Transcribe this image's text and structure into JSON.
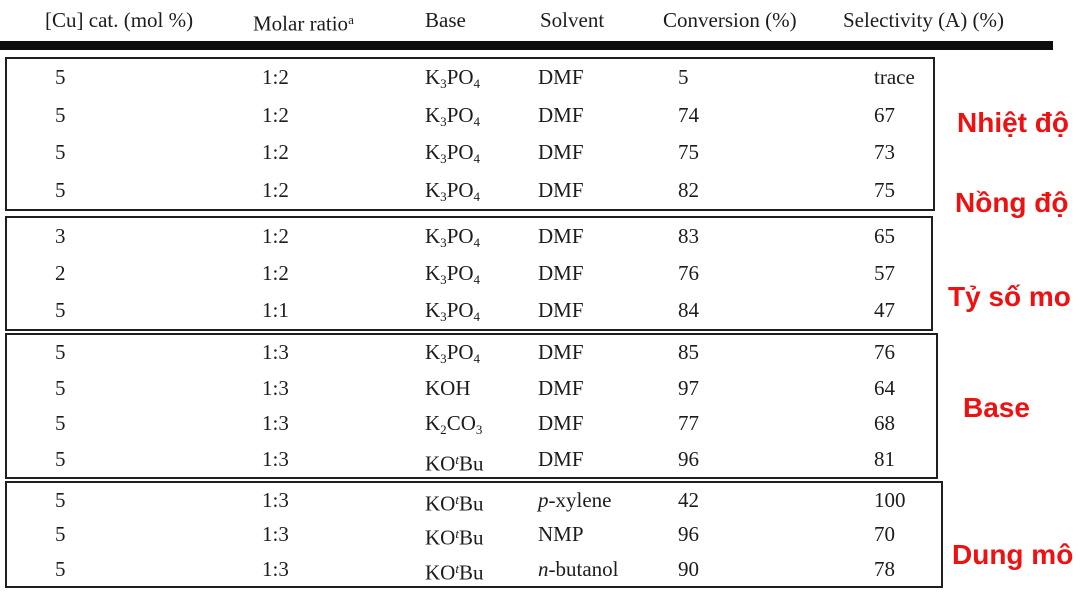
{
  "colors": {
    "annotation_red": "#ee1111",
    "table_text": "#1c1c1c",
    "border_black": "#1f1f1f",
    "background": "#ffffff"
  },
  "table": {
    "header": {
      "cu": "[Cu] cat. (mol %)",
      "molar_ratio": "Molar ratio",
      "molar_ratio_sup": "a",
      "base": "Base",
      "solvent": "Solvent",
      "conversion": "Conversion (%)",
      "selectivity": "Selectivity (A) (%)"
    },
    "groups": [
      {
        "rows": [
          {
            "cu": "5",
            "ratio": "1:2",
            "base": [
              [
                "t",
                "K"
              ],
              [
                "sub",
                "3"
              ],
              [
                "t",
                "PO"
              ],
              [
                "sub",
                "4"
              ]
            ],
            "solvent": [
              [
                "t",
                "DMF"
              ]
            ],
            "conv": "5",
            "sel": "trace"
          },
          {
            "cu": "5",
            "ratio": "1:2",
            "base": [
              [
                "t",
                "K"
              ],
              [
                "sub",
                "3"
              ],
              [
                "t",
                "PO"
              ],
              [
                "sub",
                "4"
              ]
            ],
            "solvent": [
              [
                "t",
                "DMF"
              ]
            ],
            "conv": "74",
            "sel": "67"
          },
          {
            "cu": "5",
            "ratio": "1:2",
            "base": [
              [
                "t",
                "K"
              ],
              [
                "sub",
                "3"
              ],
              [
                "t",
                "PO"
              ],
              [
                "sub",
                "4"
              ]
            ],
            "solvent": [
              [
                "t",
                "DMF"
              ]
            ],
            "conv": "75",
            "sel": "73"
          },
          {
            "cu": "5",
            "ratio": "1:2",
            "base": [
              [
                "t",
                "K"
              ],
              [
                "sub",
                "3"
              ],
              [
                "t",
                "PO"
              ],
              [
                "sub",
                "4"
              ]
            ],
            "solvent": [
              [
                "t",
                "DMF"
              ]
            ],
            "conv": "82",
            "sel": "75"
          }
        ]
      },
      {
        "rows": [
          {
            "cu": "3",
            "ratio": "1:2",
            "base": [
              [
                "t",
                "K"
              ],
              [
                "sub",
                "3"
              ],
              [
                "t",
                "PO"
              ],
              [
                "sub",
                "4"
              ]
            ],
            "solvent": [
              [
                "t",
                "DMF"
              ]
            ],
            "conv": "83",
            "sel": "65"
          },
          {
            "cu": "2",
            "ratio": "1:2",
            "base": [
              [
                "t",
                "K"
              ],
              [
                "sub",
                "3"
              ],
              [
                "t",
                "PO"
              ],
              [
                "sub",
                "4"
              ]
            ],
            "solvent": [
              [
                "t",
                "DMF"
              ]
            ],
            "conv": "76",
            "sel": "57"
          },
          {
            "cu": "5",
            "ratio": "1:1",
            "base": [
              [
                "t",
                "K"
              ],
              [
                "sub",
                "3"
              ],
              [
                "t",
                "PO"
              ],
              [
                "sub",
                "4"
              ]
            ],
            "solvent": [
              [
                "t",
                "DMF"
              ]
            ],
            "conv": "84",
            "sel": "47"
          }
        ]
      },
      {
        "rows": [
          {
            "cu": "5",
            "ratio": "1:3",
            "base": [
              [
                "t",
                "K"
              ],
              [
                "sub",
                "3"
              ],
              [
                "t",
                "PO"
              ],
              [
                "sub",
                "4"
              ]
            ],
            "solvent": [
              [
                "t",
                "DMF"
              ]
            ],
            "conv": "85",
            "sel": "76"
          },
          {
            "cu": "5",
            "ratio": "1:3",
            "base": [
              [
                "t",
                "KOH"
              ]
            ],
            "solvent": [
              [
                "t",
                "DMF"
              ]
            ],
            "conv": "97",
            "sel": "64"
          },
          {
            "cu": "5",
            "ratio": "1:3",
            "base": [
              [
                "t",
                "K"
              ],
              [
                "sub",
                "2"
              ],
              [
                "t",
                "CO"
              ],
              [
                "sub",
                "3"
              ]
            ],
            "solvent": [
              [
                "t",
                "DMF"
              ]
            ],
            "conv": "77",
            "sel": "68"
          },
          {
            "cu": "5",
            "ratio": "1:3",
            "base": [
              [
                "t",
                "KO"
              ],
              [
                "supi",
                "t"
              ],
              [
                "t",
                "Bu"
              ]
            ],
            "solvent": [
              [
                "t",
                "DMF"
              ]
            ],
            "conv": "96",
            "sel": "81"
          }
        ]
      },
      {
        "rows": [
          {
            "cu": "5",
            "ratio": "1:3",
            "base": [
              [
                "t",
                "KO"
              ],
              [
                "supi",
                "t"
              ],
              [
                "t",
                "Bu"
              ]
            ],
            "solvent": [
              [
                "i",
                "p"
              ],
              [
                "t",
                "-xylene"
              ]
            ],
            "conv": "42",
            "sel": "100"
          },
          {
            "cu": "5",
            "ratio": "1:3",
            "base": [
              [
                "t",
                "KO"
              ],
              [
                "supi",
                "t"
              ],
              [
                "t",
                "Bu"
              ]
            ],
            "solvent": [
              [
                "t",
                "NMP"
              ]
            ],
            "conv": "96",
            "sel": "70"
          },
          {
            "cu": "5",
            "ratio": "1:3",
            "base": [
              [
                "t",
                "KO"
              ],
              [
                "supi",
                "t"
              ],
              [
                "t",
                "Bu"
              ]
            ],
            "solvent": [
              [
                "i",
                "n"
              ],
              [
                "t",
                "-butanol"
              ]
            ],
            "conv": "90",
            "sel": "78"
          }
        ]
      }
    ]
  },
  "annotations": [
    {
      "label": "Nhiệt độ"
    },
    {
      "label": "Nồng độ"
    },
    {
      "label": "Tỷ số mo"
    },
    {
      "label": "Base"
    },
    {
      "label": "Dung mô"
    }
  ]
}
